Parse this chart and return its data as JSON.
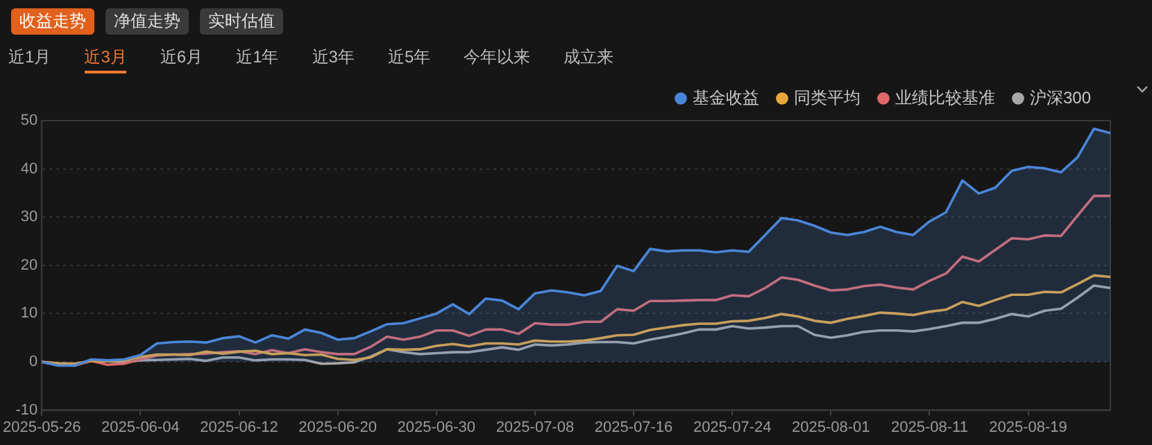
{
  "chart_data": {
    "type": "line",
    "categories": [
      "2025-05-26",
      null,
      null,
      null,
      null,
      null,
      "2025-06-04",
      null,
      null,
      null,
      null,
      null,
      "2025-06-12",
      null,
      null,
      null,
      null,
      null,
      "2025-06-20",
      null,
      null,
      null,
      null,
      null,
      "2025-06-30",
      null,
      null,
      null,
      null,
      null,
      "2025-07-08",
      null,
      null,
      null,
      null,
      null,
      "2025-07-16",
      null,
      null,
      null,
      null,
      null,
      "2025-07-24",
      null,
      null,
      null,
      null,
      null,
      "2025-08-01",
      null,
      null,
      null,
      null,
      null,
      "2025-08-11",
      null,
      null,
      null,
      null,
      null,
      "2025-08-19",
      null,
      null,
      null,
      null,
      null
    ],
    "series": [
      {
        "name": "基金收益",
        "type": "area",
        "color": "#4a86d8",
        "values": [
          0,
          -0.8,
          -0.8,
          0.5,
          0.3,
          0.5,
          1.4,
          3.8,
          4.1,
          4.2,
          4.0,
          4.9,
          5.3,
          4.0,
          5.5,
          4.8,
          6.7,
          6.0,
          4.6,
          4.9,
          6.3,
          7.8,
          8.0,
          9.0,
          10.0,
          11.9,
          9.9,
          13.1,
          12.7,
          10.9,
          14.2,
          14.8,
          14.4,
          13.8,
          14.7,
          19.9,
          18.8,
          23.4,
          22.9,
          23.1,
          23.1,
          22.7,
          23.1,
          22.8,
          26.3,
          29.8,
          29.3,
          28.2,
          26.8,
          26.3,
          26.9,
          28.0,
          26.9,
          26.3,
          29.1,
          31.0,
          37.6,
          34.9,
          36.1,
          39.6,
          40.4,
          40.1,
          39.3,
          42.4,
          48.3,
          47.4
        ]
      },
      {
        "name": "同类平均",
        "type": "line",
        "color": "#e8a63c",
        "values": [
          0,
          -0.3,
          -0.4,
          0.2,
          0.1,
          0.3,
          1.0,
          1.5,
          1.5,
          1.4,
          2.1,
          1.7,
          2.1,
          2.3,
          1.6,
          1.8,
          1.4,
          1.5,
          0.6,
          0.4,
          0.9,
          2.6,
          2.5,
          2.6,
          3.3,
          3.7,
          3.2,
          3.8,
          3.8,
          3.6,
          4.4,
          4.2,
          4.2,
          4.4,
          4.9,
          5.5,
          5.6,
          6.6,
          7.1,
          7.6,
          7.9,
          7.9,
          8.4,
          8.5,
          9.1,
          9.9,
          9.4,
          8.5,
          8.1,
          8.9,
          9.5,
          10.2,
          10.0,
          9.7,
          10.4,
          10.8,
          12.4,
          11.6,
          12.8,
          13.9,
          13.9,
          14.5,
          14.4,
          16.1,
          17.9,
          17.6
        ]
      },
      {
        "name": "业绩比较基准",
        "type": "line",
        "color": "#e06868",
        "values": [
          0,
          -0.6,
          -0.8,
          0.2,
          -0.6,
          -0.4,
          0.5,
          1.3,
          1.5,
          1.6,
          1.7,
          2.0,
          2.2,
          1.6,
          2.4,
          1.8,
          2.6,
          2.0,
          1.6,
          1.6,
          3.1,
          5.2,
          4.6,
          5.2,
          6.5,
          6.5,
          5.4,
          6.7,
          6.7,
          5.8,
          8.0,
          7.7,
          7.7,
          8.3,
          8.3,
          10.9,
          10.6,
          12.6,
          12.6,
          12.7,
          12.8,
          12.8,
          13.8,
          13.6,
          15.3,
          17.5,
          17.0,
          15.8,
          14.8,
          15.0,
          15.7,
          16.0,
          15.4,
          15.0,
          16.8,
          18.3,
          21.8,
          20.8,
          23.2,
          25.6,
          25.4,
          26.2,
          26.1,
          30.3,
          34.4,
          34.4
        ]
      },
      {
        "name": "沪深300",
        "type": "line",
        "color": "#a8a8a8",
        "values": [
          0,
          -0.7,
          -0.6,
          0.3,
          0.1,
          -0.1,
          0.3,
          0.4,
          0.5,
          0.6,
          0.2,
          0.9,
          0.9,
          0.3,
          0.5,
          0.5,
          0.4,
          -0.4,
          -0.3,
          -0.1,
          1.1,
          2.6,
          2.0,
          1.6,
          1.8,
          2.0,
          2.0,
          2.5,
          3.0,
          2.5,
          3.6,
          3.4,
          3.6,
          4.0,
          4.1,
          4.1,
          3.8,
          4.6,
          5.2,
          5.9,
          6.7,
          6.7,
          7.4,
          6.9,
          7.1,
          7.4,
          7.4,
          5.6,
          5.0,
          5.5,
          6.2,
          6.5,
          6.5,
          6.3,
          6.8,
          7.4,
          8.1,
          8.1,
          8.9,
          9.9,
          9.4,
          10.6,
          11.0,
          13.3,
          15.8,
          15.3
        ]
      }
    ],
    "ylim": [
      -10,
      50
    ],
    "yticks": [
      -10,
      0,
      10,
      20,
      30,
      40,
      50
    ],
    "grid": "y",
    "legend": "top right",
    "marker": "none",
    "line_style": "solid",
    "annotations": [
      "收益走势",
      "净值走势",
      "实时估值",
      "近1月",
      "近3月",
      "近6月",
      "近1年",
      "近3年",
      "近5年",
      "今年以来",
      "成立来"
    ]
  }
}
